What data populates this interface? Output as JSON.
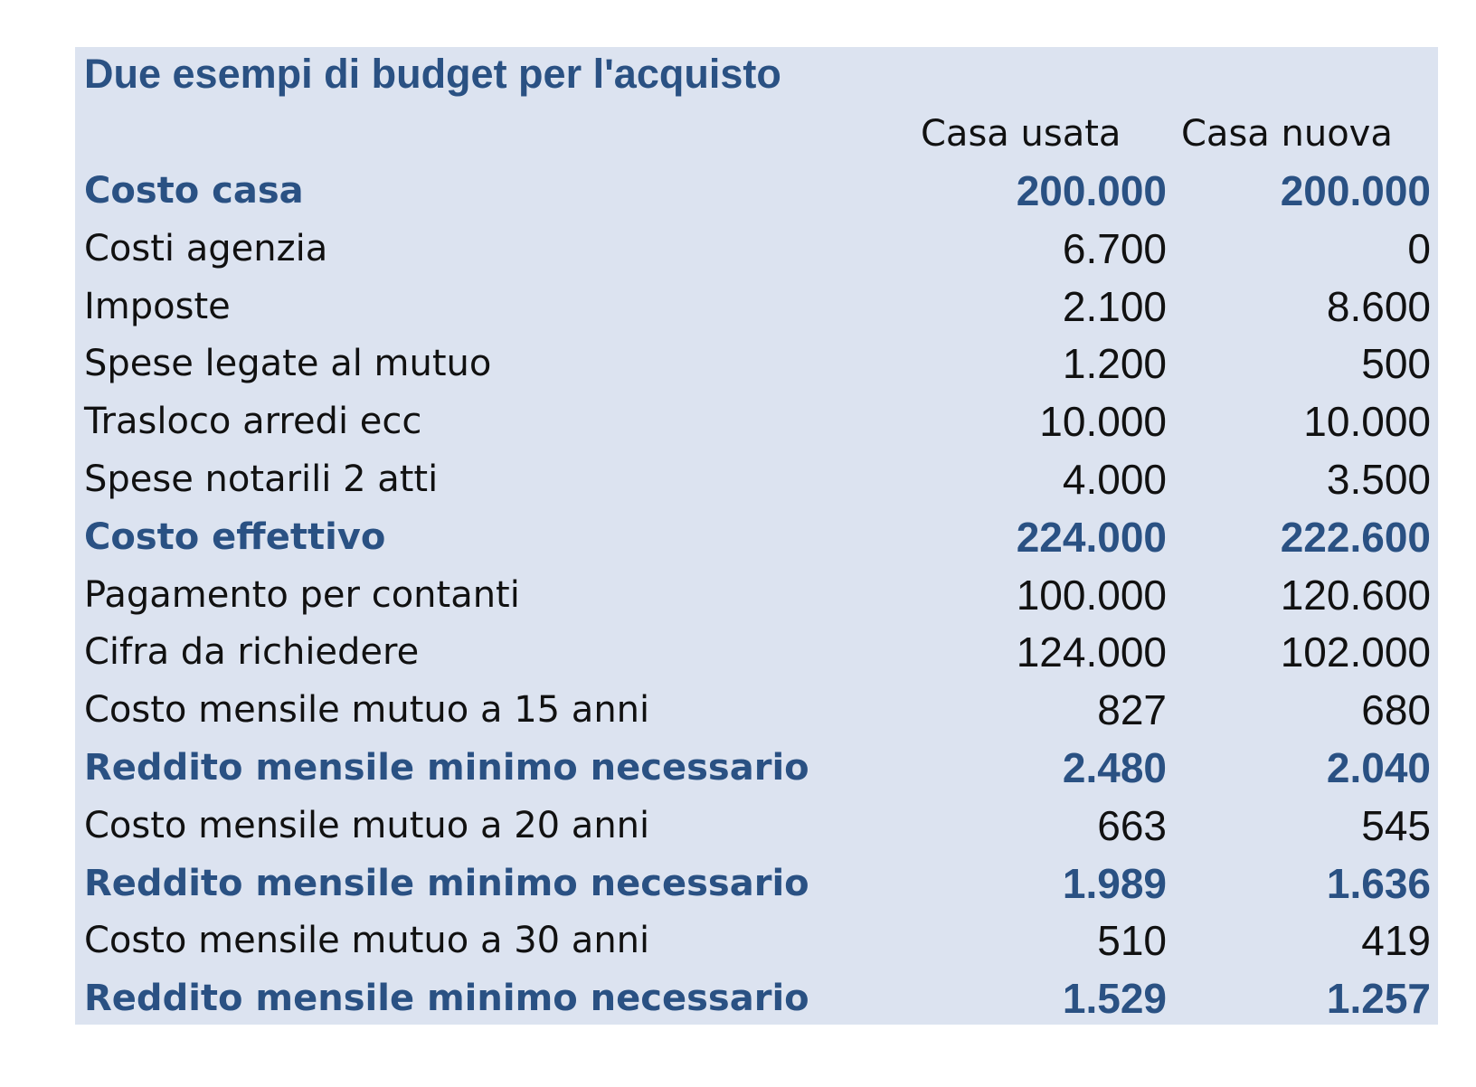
{
  "title": "Due esempi di budget per l'acquisto",
  "columns": [
    "Casa usata",
    "Casa nuova"
  ],
  "colors": {
    "accent": "#2a5183",
    "panel": "#dce3f0",
    "text": "#111111"
  },
  "rows": [
    {
      "label": "Costo casa",
      "used": "200.000",
      "new": "200.000",
      "highlight": true
    },
    {
      "label": "Costi agenzia",
      "used": "6.700",
      "new": "0",
      "highlight": false
    },
    {
      "label": "Imposte",
      "used": "2.100",
      "new": "8.600",
      "highlight": false
    },
    {
      "label": "Spese legate al mutuo",
      "used": "1.200",
      "new": "500",
      "highlight": false
    },
    {
      "label": "Trasloco arredi ecc",
      "used": "10.000",
      "new": "10.000",
      "highlight": false
    },
    {
      "label": "Spese notarili 2 atti",
      "used": "4.000",
      "new": "3.500",
      "highlight": false
    },
    {
      "label": "Costo effettivo",
      "used": "224.000",
      "new": "222.600",
      "highlight": true
    },
    {
      "label": "Pagamento per contanti",
      "used": "100.000",
      "new": "120.600",
      "highlight": false
    },
    {
      "label": "Cifra da richiedere",
      "used": "124.000",
      "new": "102.000",
      "highlight": false
    },
    {
      "label": "Costo mensile mutuo a 15 anni",
      "used": "827",
      "new": "680",
      "highlight": false
    },
    {
      "label": "Reddito mensile minimo necessario",
      "used": "2.480",
      "new": "2.040",
      "highlight": true
    },
    {
      "label": "Costo mensile mutuo a 20 anni",
      "used": "663",
      "new": "545",
      "highlight": false
    },
    {
      "label": "Reddito mensile minimo necessario",
      "used": "1.989",
      "new": "1.636",
      "highlight": true
    },
    {
      "label": "Costo mensile mutuo a 30 anni",
      "used": "510",
      "new": "419",
      "highlight": false
    },
    {
      "label": "Reddito mensile minimo necessario",
      "used": "1.529",
      "new": "1.257",
      "highlight": true
    }
  ]
}
